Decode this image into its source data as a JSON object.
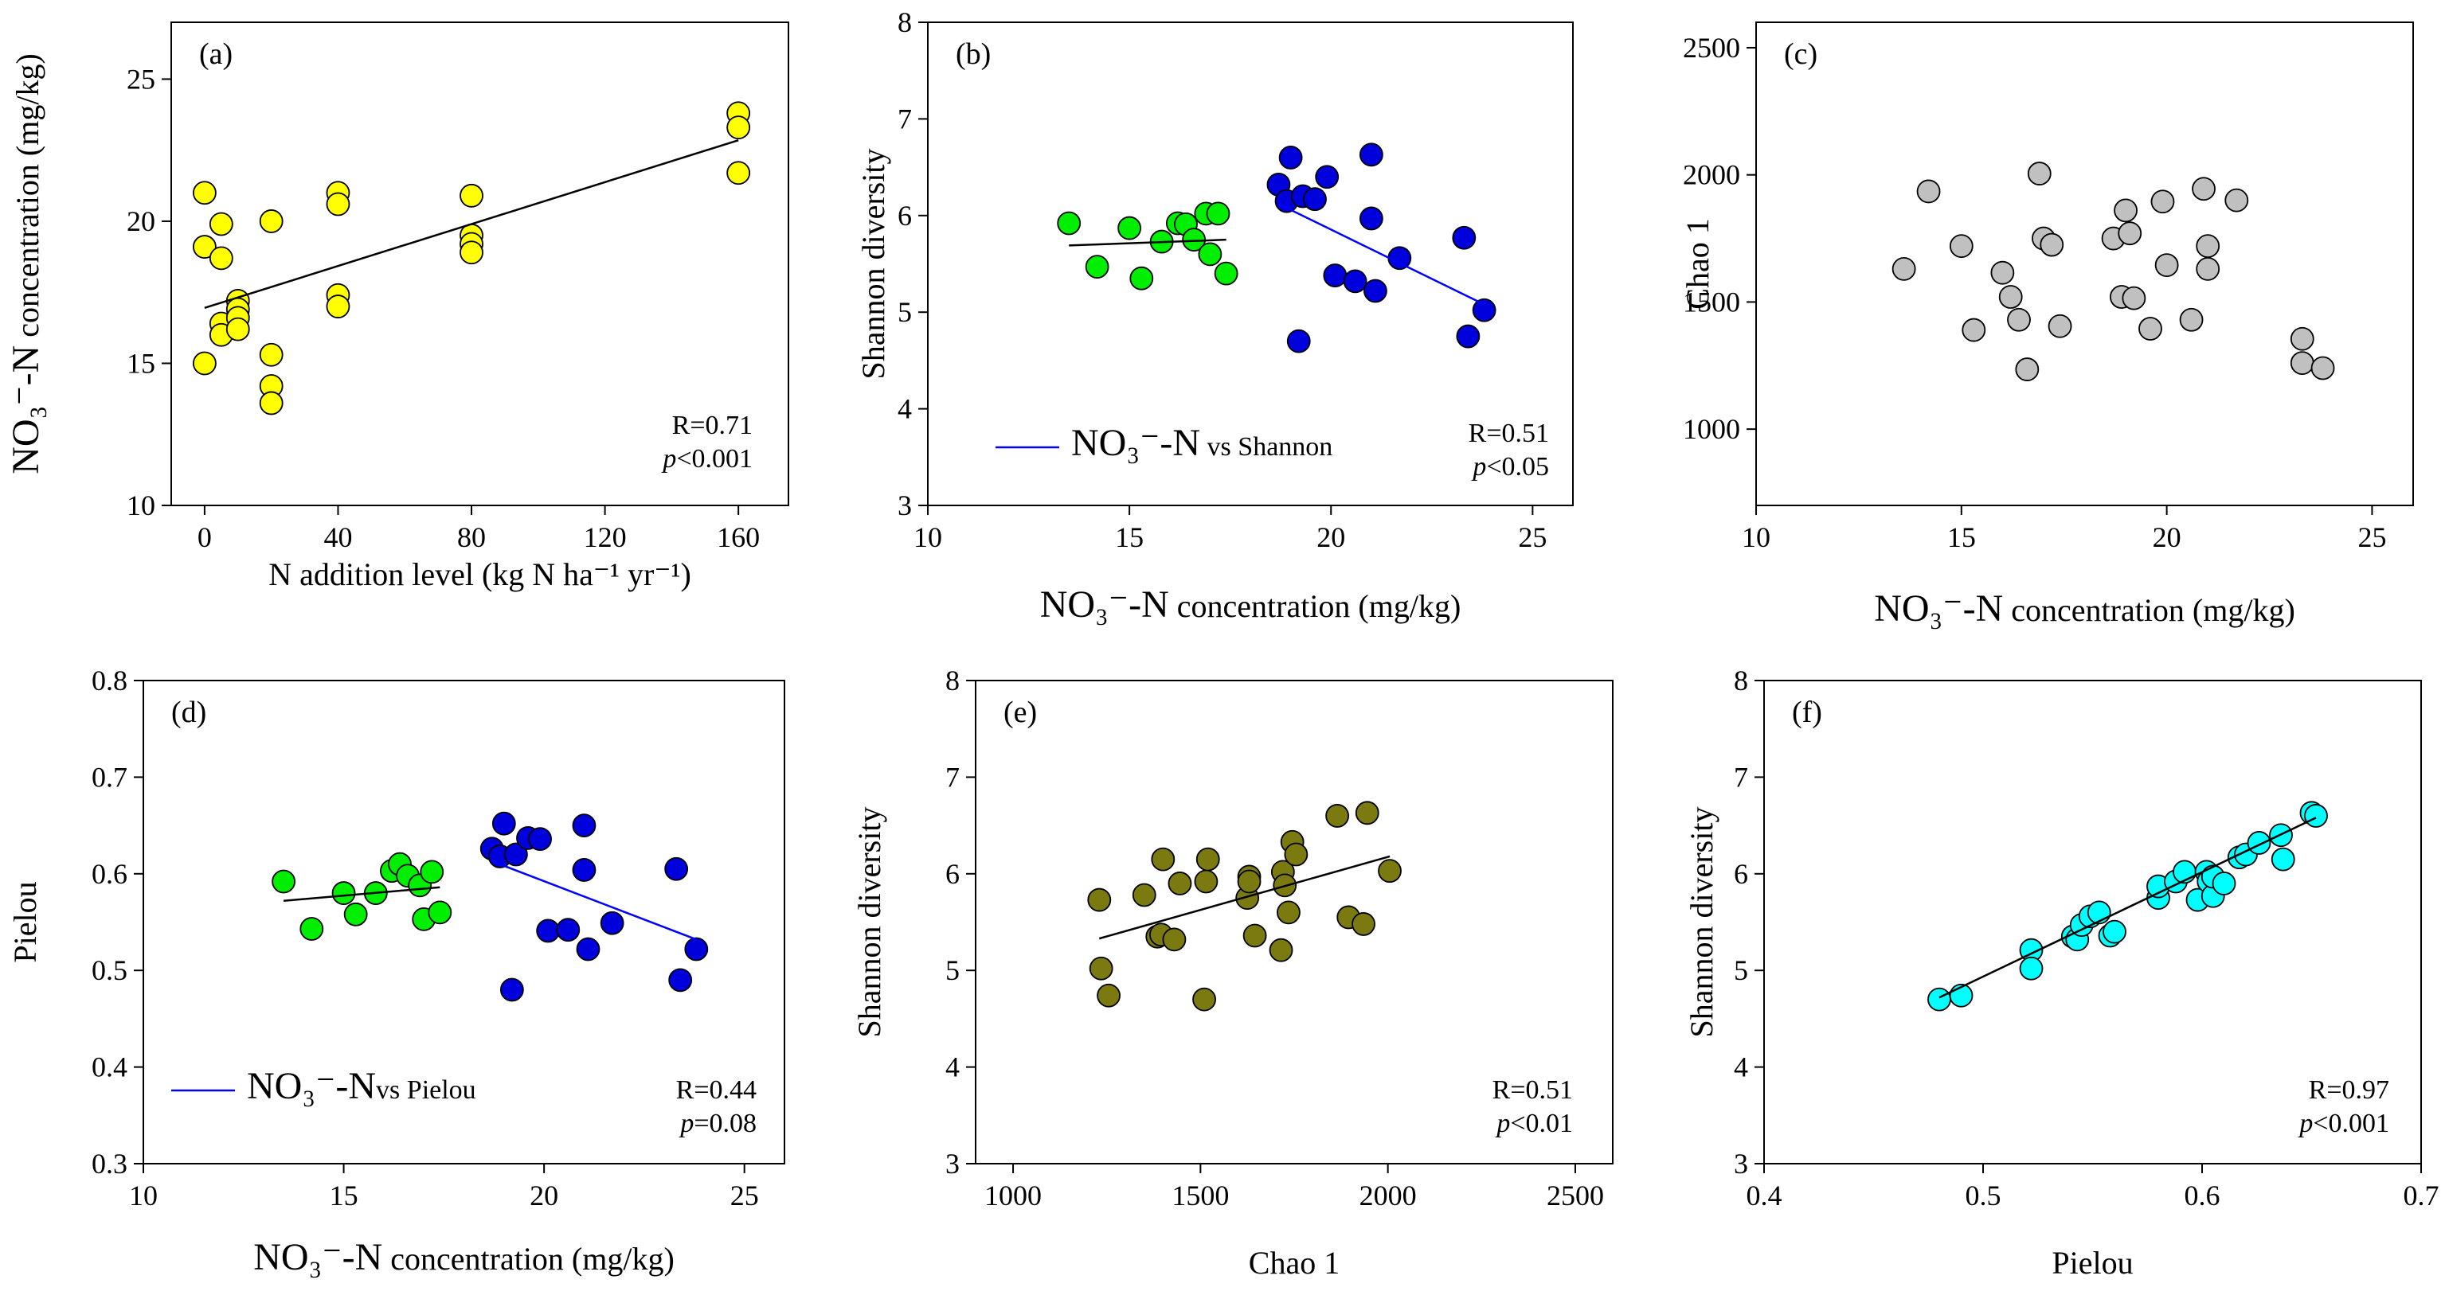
{
  "chart_data": [
    {
      "id": "a",
      "type": "scatter",
      "panel_label": "(a)",
      "xlabel": "N addition level (kg N ha⁻¹ yr⁻¹)",
      "ylabel": "NO₃⁻-N concentration (mg/kg)",
      "xlim": [
        -10,
        175
      ],
      "ylim": [
        10,
        27
      ],
      "xticks": [
        0,
        40,
        80,
        120,
        160
      ],
      "yticks": [
        10,
        15,
        20,
        25
      ],
      "color": "#ffff00",
      "stat_lines": [
        "R=0.71",
        "p<0.001"
      ],
      "series": [
        {
          "name": "points",
          "x": [
            0,
            0,
            0,
            5,
            5,
            5,
            5,
            10,
            10,
            10,
            10,
            20,
            20,
            20,
            20,
            40,
            40,
            40,
            40,
            80,
            80,
            80,
            80,
            160,
            160,
            160
          ],
          "y": [
            21.0,
            19.1,
            15.0,
            19.9,
            18.7,
            16.4,
            16.0,
            17.2,
            16.9,
            16.6,
            16.2,
            20.0,
            15.3,
            14.2,
            13.6,
            21.0,
            20.6,
            17.4,
            17.0,
            20.9,
            19.5,
            19.2,
            18.9,
            23.8,
            23.3,
            21.7
          ]
        }
      ],
      "fits": [
        {
          "x": [
            0,
            160
          ],
          "y": [
            16.95,
            22.85
          ],
          "color": "#000000"
        }
      ]
    },
    {
      "id": "b",
      "type": "scatter",
      "panel_label": "(b)",
      "xlabel": "NO₃⁻-N concentration (mg/kg)",
      "ylabel": "Shannon diversity",
      "xlim": [
        10,
        26
      ],
      "ylim": [
        3,
        8
      ],
      "xticks": [
        10,
        15,
        20,
        25
      ],
      "yticks": [
        3,
        4,
        5,
        6,
        7,
        8
      ],
      "stat_lines": [
        "R=0.51",
        "p<0.05"
      ],
      "legend": {
        "label": "NO₃⁻-N  vs Shannon",
        "color": "#0000ff"
      },
      "series": [
        {
          "name": "low",
          "color": "#00ee00",
          "x": [
            13.5,
            14.2,
            15.0,
            15.3,
            15.8,
            16.2,
            16.4,
            16.6,
            16.9,
            17.0,
            17.2,
            17.4
          ],
          "y": [
            5.92,
            5.47,
            5.87,
            5.35,
            5.73,
            5.92,
            5.91,
            5.75,
            6.02,
            5.6,
            6.02,
            5.4
          ]
        },
        {
          "name": "high",
          "color": "#0000dd",
          "x": [
            18.7,
            18.9,
            19.0,
            19.2,
            19.3,
            19.6,
            19.9,
            20.1,
            20.6,
            21.0,
            21.0,
            21.1,
            21.7,
            23.3,
            23.4,
            23.8
          ],
          "y": [
            6.32,
            6.15,
            6.6,
            4.7,
            6.2,
            6.17,
            6.4,
            5.38,
            5.32,
            6.63,
            5.97,
            5.22,
            5.56,
            5.77,
            4.75,
            5.02
          ]
        }
      ],
      "fits": [
        {
          "x": [
            13.5,
            17.4
          ],
          "y": [
            5.69,
            5.75
          ],
          "color": "#000000"
        },
        {
          "x": [
            18.7,
            23.8
          ],
          "y": [
            6.12,
            5.08
          ],
          "color": "#0000ff"
        }
      ]
    },
    {
      "id": "c",
      "type": "scatter",
      "panel_label": "(c)",
      "xlabel": "NO₃⁻-N concentration (mg/kg)",
      "ylabel": "Chao 1",
      "xlim": [
        10,
        26
      ],
      "ylim": [
        700,
        2600
      ],
      "xticks": [
        10,
        15,
        20,
        25
      ],
      "yticks": [
        1000,
        1500,
        2000,
        2500
      ],
      "color": "#c0c0c0",
      "series": [
        {
          "name": "points",
          "x": [
            13.6,
            14.2,
            15.0,
            15.3,
            16.0,
            16.2,
            16.4,
            16.6,
            16.9,
            17.0,
            17.2,
            17.4,
            18.7,
            18.9,
            19.0,
            19.1,
            19.2,
            19.6,
            19.9,
            20.0,
            20.6,
            20.9,
            21.0,
            21.0,
            21.7,
            23.3,
            23.3,
            23.8
          ],
          "y": [
            1630,
            1935,
            1720,
            1390,
            1615,
            1520,
            1430,
            1235,
            2005,
            1750,
            1725,
            1405,
            1750,
            1520,
            1860,
            1770,
            1515,
            1395,
            1895,
            1645,
            1430,
            1945,
            1630,
            1720,
            1900,
            1355,
            1260,
            1240
          ]
        }
      ]
    },
    {
      "id": "d",
      "type": "scatter",
      "panel_label": "(d)",
      "xlabel": "NO₃⁻-N concentration (mg/kg)",
      "ylabel": "Pielou",
      "xlim": [
        10,
        26
      ],
      "ylim": [
        0.3,
        0.8
      ],
      "xticks": [
        10,
        15,
        20,
        25
      ],
      "yticks": [
        0.3,
        0.4,
        0.5,
        0.6,
        0.7,
        0.8
      ],
      "stat_lines": [
        "R=0.44",
        "p=0.08"
      ],
      "legend": {
        "label": "NO₃⁻-Nvs Pielou",
        "color": "#0000ff"
      },
      "series": [
        {
          "name": "low",
          "color": "#00ee00",
          "x": [
            13.5,
            14.2,
            15.0,
            15.3,
            15.8,
            16.2,
            16.4,
            16.6,
            16.9,
            17.0,
            17.2,
            17.4
          ],
          "y": [
            0.592,
            0.543,
            0.58,
            0.558,
            0.58,
            0.603,
            0.61,
            0.598,
            0.588,
            0.553,
            0.602,
            0.56
          ]
        },
        {
          "name": "high",
          "color": "#0000dd",
          "x": [
            18.7,
            18.9,
            19.0,
            19.2,
            19.3,
            19.6,
            19.9,
            20.1,
            20.6,
            21.0,
            21.0,
            21.1,
            21.7,
            23.3,
            23.4,
            23.8
          ],
          "y": [
            0.626,
            0.618,
            0.652,
            0.48,
            0.62,
            0.637,
            0.636,
            0.541,
            0.542,
            0.65,
            0.604,
            0.522,
            0.549,
            0.605,
            0.49,
            0.522
          ]
        }
      ],
      "fits": [
        {
          "x": [
            13.5,
            17.4
          ],
          "y": [
            0.572,
            0.586
          ],
          "color": "#000000"
        },
        {
          "x": [
            18.7,
            23.8
          ],
          "y": [
            0.613,
            0.532
          ],
          "color": "#0000ff"
        }
      ]
    },
    {
      "id": "e",
      "type": "scatter",
      "panel_label": "(e)",
      "xlabel": "Chao 1",
      "ylabel": "Shannon diversity",
      "xlim": [
        900,
        2600
      ],
      "ylim": [
        3,
        8
      ],
      "xticks": [
        1000,
        1500,
        2000,
        2500
      ],
      "yticks": [
        3,
        4,
        5,
        6,
        7,
        8
      ],
      "color": "#7a7a10",
      "stat_lines": [
        "R=0.51",
        "p<0.01"
      ],
      "series": [
        {
          "name": "points",
          "x": [
            1230,
            1235,
            1255,
            1350,
            1385,
            1395,
            1400,
            1430,
            1445,
            1510,
            1515,
            1520,
            1625,
            1630,
            1630,
            1645,
            1715,
            1720,
            1725,
            1735,
            1745,
            1755,
            1865,
            1895,
            1935,
            1945,
            2005
          ],
          "y": [
            5.73,
            5.02,
            4.74,
            5.78,
            5.35,
            5.37,
            6.15,
            5.32,
            5.9,
            4.7,
            5.92,
            6.15,
            5.75,
            5.97,
            5.92,
            5.36,
            5.21,
            6.02,
            5.88,
            5.6,
            6.33,
            6.2,
            6.6,
            5.55,
            5.48,
            6.63,
            6.03
          ]
        }
      ],
      "fits": [
        {
          "x": [
            1230,
            2005
          ],
          "y": [
            5.33,
            6.18
          ],
          "color": "#000000"
        }
      ]
    },
    {
      "id": "f",
      "type": "scatter",
      "panel_label": "(f)",
      "xlabel": "Pielou",
      "ylabel": "Shannon diversity",
      "xlim": [
        0.4,
        0.7
      ],
      "ylim": [
        3,
        8
      ],
      "xticks": [
        0.4,
        0.5,
        0.6,
        0.7
      ],
      "yticks": [
        3,
        4,
        5,
        6,
        7,
        8
      ],
      "color": "#00ffff",
      "stat_lines": [
        "R=0.97",
        "p<0.001"
      ],
      "series": [
        {
          "name": "points",
          "x": [
            0.48,
            0.49,
            0.522,
            0.522,
            0.541,
            0.543,
            0.545,
            0.549,
            0.553,
            0.558,
            0.56,
            0.58,
            0.58,
            0.588,
            0.592,
            0.598,
            0.602,
            0.603,
            0.605,
            0.605,
            0.61,
            0.617,
            0.62,
            0.626,
            0.636,
            0.637,
            0.65,
            0.652
          ],
          "y": [
            4.7,
            4.74,
            5.21,
            5.02,
            5.35,
            5.32,
            5.47,
            5.56,
            5.6,
            5.36,
            5.4,
            5.75,
            5.87,
            5.92,
            6.02,
            5.73,
            6.02,
            5.92,
            5.77,
            5.97,
            5.9,
            6.17,
            6.2,
            6.32,
            6.4,
            6.15,
            6.63,
            6.6
          ]
        }
      ],
      "fits": [
        {
          "x": [
            0.48,
            0.652
          ],
          "y": [
            4.72,
            6.58
          ],
          "color": "#000000"
        }
      ]
    }
  ]
}
